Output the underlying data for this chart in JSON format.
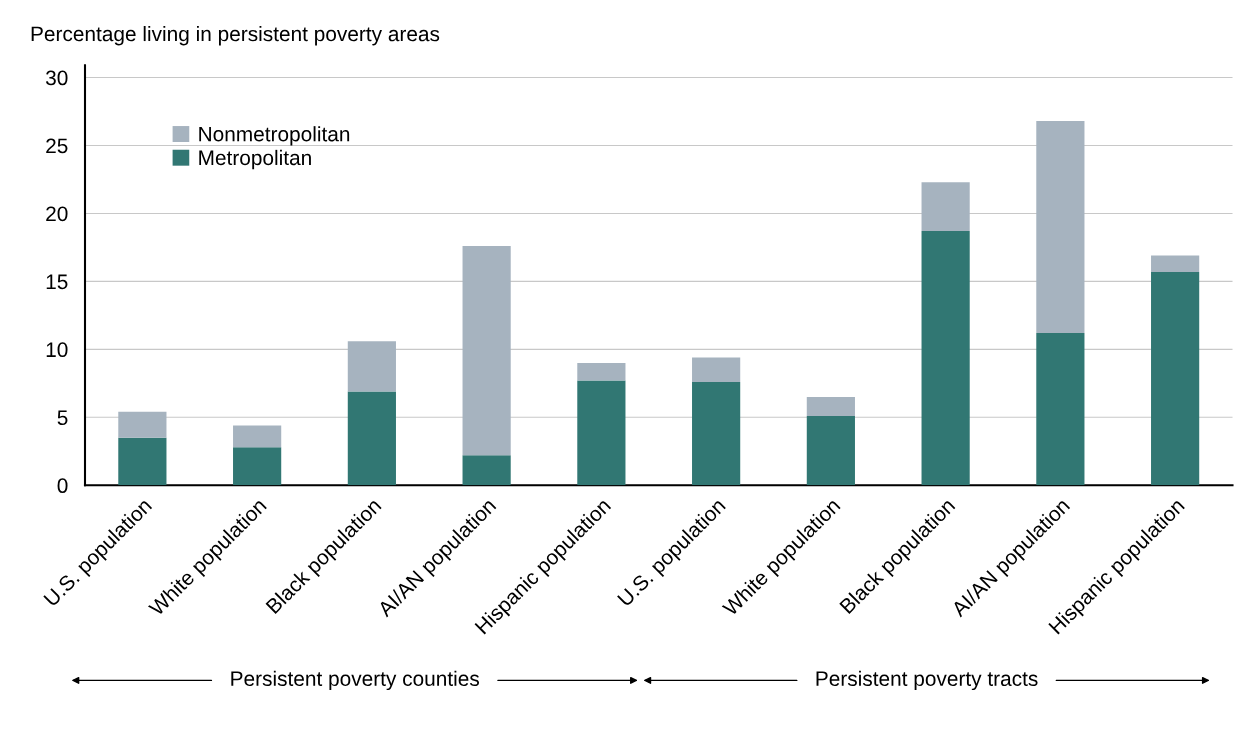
{
  "chart_data": {
    "type": "bar",
    "stacked": true,
    "ylabel": "Percentage living in persistent poverty areas",
    "categories": [
      "U.S. population",
      "White population",
      "Black population",
      "AI/AN population",
      "Hispanic population",
      "U.S. population",
      "White population",
      "Black population",
      "AI/AN population",
      "Hispanic population"
    ],
    "series": [
      {
        "name": "Metropolitan",
        "color": "#317773",
        "values": [
          3.5,
          2.8,
          6.9,
          2.2,
          7.7,
          7.6,
          5.1,
          18.7,
          11.2,
          15.7
        ]
      },
      {
        "name": "Nonmetropolitan",
        "color": "#a6b3bf",
        "values": [
          1.9,
          1.6,
          3.7,
          15.4,
          1.3,
          1.8,
          1.4,
          3.6,
          15.6,
          1.2
        ]
      }
    ],
    "ylim": [
      0,
      30.9
    ],
    "yticks": [
      0,
      5,
      10,
      15,
      20,
      25,
      30
    ],
    "grid": "y",
    "legend": "top left",
    "annotations": [
      "Persistent poverty counties",
      "Persistent poverty tracts"
    ]
  }
}
